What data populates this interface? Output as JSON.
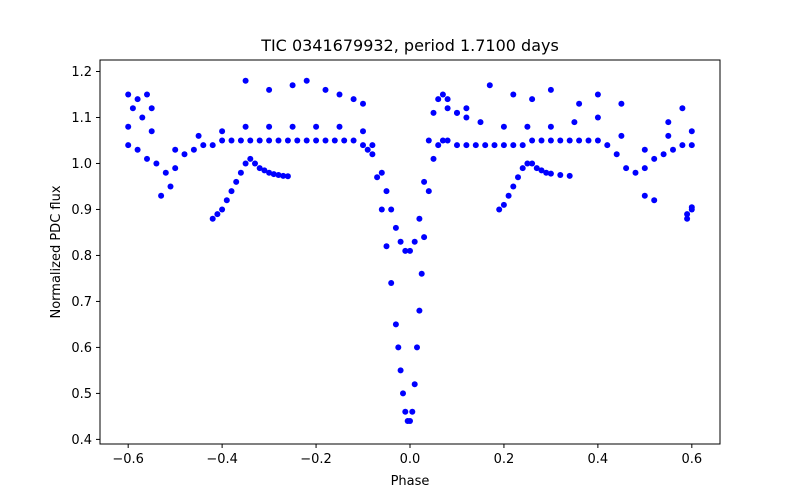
{
  "chart_data": {
    "type": "scatter",
    "title": "TIC 0341679932, period 1.7100 days",
    "xlabel": "Phase",
    "ylabel": "Normalized PDC flux",
    "xlim": [
      -0.66,
      0.66
    ],
    "ylim": [
      0.39,
      1.225
    ],
    "xticks": [
      -0.6,
      -0.4,
      -0.2,
      0.0,
      0.2,
      0.4,
      0.6
    ],
    "xtick_labels": [
      "−0.6",
      "−0.4",
      "−0.2",
      "0.0",
      "0.2",
      "0.4",
      "0.6"
    ],
    "yticks": [
      0.4,
      0.5,
      0.6,
      0.7,
      0.8,
      0.9,
      1.0,
      1.1,
      1.2
    ],
    "ytick_labels": [
      "0.4",
      "0.5",
      "0.6",
      "0.7",
      "0.8",
      "0.9",
      "1.0",
      "1.1",
      "1.2"
    ],
    "grid": false,
    "legend": "none",
    "marker_color": "#0000ff",
    "series": [
      {
        "x": [
          -0.6,
          -0.58,
          -0.56,
          -0.54,
          -0.52,
          -0.5,
          -0.48,
          -0.46,
          -0.44,
          -0.42,
          -0.4,
          -0.38,
          -0.36,
          -0.34,
          -0.32,
          -0.3,
          -0.28,
          -0.26,
          -0.24,
          -0.22,
          -0.2,
          -0.18,
          -0.16,
          -0.14,
          -0.12,
          -0.1,
          -0.09,
          -0.08,
          -0.07,
          -0.06,
          -0.05,
          -0.04,
          -0.03,
          -0.025,
          -0.02,
          -0.015,
          -0.01,
          -0.005,
          0.0,
          0.005,
          0.01,
          0.015,
          0.02,
          0.025,
          0.03,
          0.04,
          0.05,
          0.06,
          0.07,
          0.08,
          0.1,
          0.12,
          0.14,
          0.16,
          0.18,
          0.2,
          0.22,
          0.24,
          0.26,
          0.28,
          0.3,
          0.32,
          0.34,
          0.36,
          0.38,
          0.4,
          0.42,
          0.44,
          0.46,
          0.48,
          0.5,
          0.52,
          0.54,
          0.56,
          0.58,
          0.6
        ],
        "y": [
          1.04,
          1.03,
          1.01,
          1.0,
          0.98,
          0.99,
          1.02,
          1.03,
          1.04,
          1.04,
          1.05,
          1.05,
          1.05,
          1.05,
          1.05,
          1.05,
          1.05,
          1.05,
          1.05,
          1.05,
          1.05,
          1.05,
          1.05,
          1.05,
          1.05,
          1.04,
          1.03,
          1.02,
          0.97,
          0.9,
          0.82,
          0.74,
          0.65,
          0.6,
          0.55,
          0.5,
          0.46,
          0.44,
          0.44,
          0.46,
          0.52,
          0.6,
          0.68,
          0.76,
          0.84,
          0.94,
          1.01,
          1.04,
          1.05,
          1.05,
          1.04,
          1.04,
          1.04,
          1.04,
          1.04,
          1.04,
          1.04,
          1.04,
          1.05,
          1.05,
          1.05,
          1.05,
          1.05,
          1.05,
          1.05,
          1.05,
          1.04,
          1.02,
          0.99,
          0.98,
          0.99,
          1.01,
          1.02,
          1.03,
          1.04,
          1.04
        ]
      },
      {
        "x": [
          -0.6,
          -0.55,
          -0.5,
          -0.45,
          -0.4,
          -0.35,
          -0.3,
          -0.25,
          -0.2,
          -0.15,
          -0.1,
          -0.08,
          -0.06,
          -0.05,
          -0.04,
          -0.03,
          -0.02,
          -0.01,
          0.0,
          0.01,
          0.02,
          0.03,
          0.04,
          0.05,
          0.06,
          0.07,
          0.08,
          0.1,
          0.12,
          0.15,
          0.2,
          0.25,
          0.3,
          0.35,
          0.4,
          0.45,
          0.5,
          0.55,
          0.6
        ],
        "y": [
          1.08,
          1.07,
          1.03,
          1.06,
          1.07,
          1.08,
          1.08,
          1.08,
          1.08,
          1.08,
          1.07,
          1.04,
          0.98,
          0.94,
          0.9,
          0.86,
          0.83,
          0.81,
          0.81,
          0.83,
          0.88,
          0.96,
          1.05,
          1.11,
          1.14,
          1.15,
          1.14,
          1.11,
          1.1,
          1.09,
          1.08,
          1.08,
          1.08,
          1.09,
          1.1,
          1.06,
          1.03,
          1.06,
          1.07
        ]
      },
      {
        "x": [
          -0.42,
          -0.41,
          -0.4,
          -0.39,
          -0.38,
          -0.37,
          -0.36,
          -0.35,
          -0.34,
          -0.33,
          -0.32,
          -0.31,
          -0.3,
          -0.29,
          -0.28,
          -0.27,
          -0.26
        ],
        "y": [
          0.88,
          0.89,
          0.9,
          0.92,
          0.94,
          0.96,
          0.98,
          1.0,
          1.01,
          1.0,
          0.99,
          0.985,
          0.98,
          0.977,
          0.975,
          0.973,
          0.972
        ]
      },
      {
        "x": [
          0.19,
          0.2,
          0.21,
          0.22,
          0.23,
          0.24,
          0.25,
          0.26,
          0.27,
          0.28,
          0.29,
          0.3,
          0.32,
          0.34
        ],
        "y": [
          0.9,
          0.91,
          0.93,
          0.95,
          0.97,
          0.99,
          1.0,
          1.0,
          0.99,
          0.985,
          0.98,
          0.978,
          0.975,
          0.973
        ]
      },
      {
        "x": [
          -0.6,
          -0.59,
          -0.58,
          -0.57,
          -0.56,
          -0.55,
          -0.53,
          -0.51,
          -0.35,
          -0.3,
          -0.25,
          -0.22,
          -0.18,
          -0.15,
          -0.12,
          -0.1,
          0.08,
          0.1,
          0.12,
          0.17,
          0.22,
          0.26,
          0.3,
          0.36,
          0.4,
          0.45,
          0.5,
          0.52,
          0.55,
          0.58,
          0.59,
          0.6,
          0.59,
          0.6
        ],
        "y": [
          1.15,
          1.12,
          1.14,
          1.1,
          1.15,
          1.12,
          0.93,
          0.95,
          1.18,
          1.16,
          1.17,
          1.18,
          1.16,
          1.15,
          1.14,
          1.13,
          1.12,
          1.11,
          1.12,
          1.17,
          1.15,
          1.14,
          1.16,
          1.13,
          1.15,
          1.13,
          0.93,
          0.92,
          1.09,
          1.12,
          0.88,
          0.9,
          0.89,
          0.905
        ]
      }
    ]
  }
}
